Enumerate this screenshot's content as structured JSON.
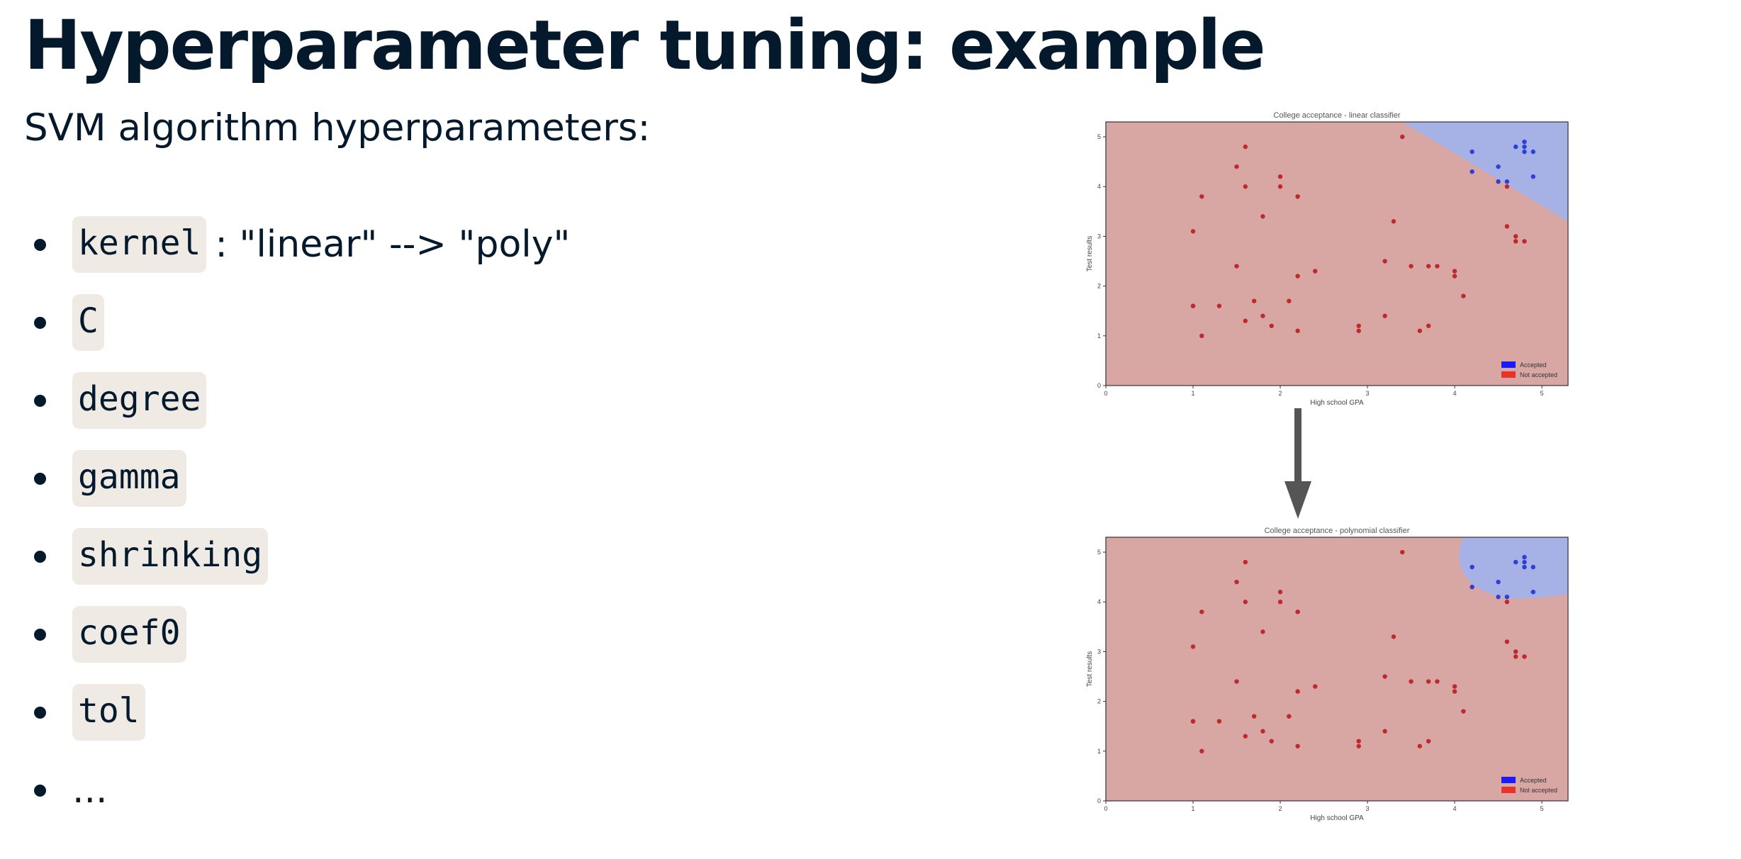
{
  "slide": {
    "title": "Hyperparameter tuning: example",
    "subtitle": "SVM algorithm hyperparameters:",
    "bullets": [
      {
        "code": "kernel",
        "text": ": \"linear\" --> \"poly\""
      },
      {
        "code": "C",
        "text": ""
      },
      {
        "code": "degree",
        "text": ""
      },
      {
        "code": "gamma",
        "text": ""
      },
      {
        "code": "shrinking",
        "text": ""
      },
      {
        "code": "coef0",
        "text": ""
      },
      {
        "code": "tol",
        "text": ""
      }
    ],
    "last_bullet": "..."
  },
  "colors": {
    "not_accepted_region": "#d8a7a3",
    "accepted_region": "#a6b1e6",
    "not_accepted_point": "#c0282d",
    "accepted_point": "#2d3fd6",
    "arrow": "#555555"
  },
  "chart_data": [
    {
      "type": "scatter",
      "title": "College acceptance - linear classifier",
      "xlabel": "High school GPA",
      "ylabel": "Test results",
      "xlim": [
        0,
        5.3
      ],
      "ylim": [
        0,
        5.3
      ],
      "x_ticks": [
        "0",
        "1",
        "2",
        "3",
        "4",
        "5"
      ],
      "y_ticks": [
        "0",
        "1",
        "2",
        "3",
        "4",
        "5"
      ],
      "decision_boundary": {
        "shape": "linear",
        "points": [
          [
            3.4,
            5.3
          ],
          [
            5.3,
            3.3
          ]
        ]
      },
      "legend": {
        "position": "bottom-right",
        "entries": [
          "Accepted",
          "Not accepted"
        ]
      },
      "series": [
        {
          "name": "Accepted",
          "x": [
            4.2,
            4.2,
            4.5,
            4.5,
            4.7,
            4.8,
            4.8,
            4.8,
            4.9,
            4.9,
            4.6
          ],
          "y": [
            4.7,
            4.3,
            4.4,
            4.1,
            4.8,
            4.9,
            4.8,
            4.7,
            4.7,
            4.2,
            4.1
          ]
        },
        {
          "name": "Not accepted",
          "x": [
            1.0,
            1.1,
            1.6,
            1.5,
            1.6,
            2.0,
            2.2,
            2.0,
            2.2,
            1.8,
            1.0,
            1.5,
            1.3,
            1.6,
            1.7,
            1.8,
            1.9,
            2.1,
            2.2,
            2.2,
            2.4,
            1.0,
            1.1,
            3.4,
            3.3,
            3.2,
            3.5,
            3.7,
            3.8,
            4.0,
            4.0,
            4.1,
            2.9,
            2.9,
            3.2,
            3.6,
            3.7,
            4.6,
            4.7,
            4.7,
            4.8,
            4.6
          ],
          "y": [
            3.1,
            3.8,
            4.8,
            4.4,
            4.0,
            4.2,
            3.8,
            4.0,
            3.8,
            3.4,
            1.6,
            2.4,
            1.6,
            1.3,
            1.7,
            1.4,
            1.2,
            1.7,
            2.2,
            1.1,
            2.3,
            1.6,
            1.0,
            5.0,
            3.3,
            2.5,
            2.4,
            2.4,
            2.4,
            2.3,
            2.2,
            1.8,
            1.2,
            1.1,
            1.4,
            1.1,
            1.2,
            3.2,
            2.9,
            3.0,
            2.9,
            4.0
          ]
        }
      ]
    },
    {
      "type": "scatter",
      "title": "College acceptance - polynomial classifier",
      "xlabel": "High school GPA",
      "ylabel": "Test results",
      "xlim": [
        0,
        5.3
      ],
      "ylim": [
        0,
        5.3
      ],
      "x_ticks": [
        "0",
        "1",
        "2",
        "3",
        "4",
        "5"
      ],
      "y_ticks": [
        "0",
        "1",
        "2",
        "3",
        "4",
        "5"
      ],
      "decision_boundary": {
        "shape": "polynomial",
        "points": [
          [
            4.1,
            5.3
          ],
          [
            4.0,
            4.9
          ],
          [
            4.05,
            4.5
          ],
          [
            4.3,
            4.25
          ],
          [
            4.8,
            4.05
          ],
          [
            5.3,
            4.15
          ]
        ]
      },
      "legend": {
        "position": "bottom-right",
        "entries": [
          "Accepted",
          "Not accepted"
        ]
      },
      "series": [
        {
          "name": "Accepted",
          "x": [
            4.2,
            4.2,
            4.5,
            4.5,
            4.7,
            4.8,
            4.8,
            4.8,
            4.9,
            4.9,
            4.6
          ],
          "y": [
            4.7,
            4.3,
            4.4,
            4.1,
            4.8,
            4.9,
            4.8,
            4.7,
            4.7,
            4.2,
            4.1
          ]
        },
        {
          "name": "Not accepted",
          "x": [
            1.0,
            1.1,
            1.6,
            1.5,
            1.6,
            2.0,
            2.2,
            2.0,
            2.2,
            1.8,
            1.0,
            1.5,
            1.3,
            1.6,
            1.7,
            1.8,
            1.9,
            2.1,
            2.2,
            2.2,
            2.4,
            1.0,
            1.1,
            3.4,
            3.3,
            3.2,
            3.5,
            3.7,
            3.8,
            4.0,
            4.0,
            4.1,
            2.9,
            2.9,
            3.2,
            3.6,
            3.7,
            4.6,
            4.7,
            4.7,
            4.8,
            4.6
          ],
          "y": [
            3.1,
            3.8,
            4.8,
            4.4,
            4.0,
            4.2,
            3.8,
            4.0,
            3.8,
            3.4,
            1.6,
            2.4,
            1.6,
            1.3,
            1.7,
            1.4,
            1.2,
            1.7,
            2.2,
            1.1,
            2.3,
            1.6,
            1.0,
            5.0,
            3.3,
            2.5,
            2.4,
            2.4,
            2.4,
            2.3,
            2.2,
            1.8,
            1.2,
            1.1,
            1.4,
            1.1,
            1.2,
            3.2,
            2.9,
            3.0,
            2.9,
            4.0
          ]
        }
      ]
    }
  ]
}
